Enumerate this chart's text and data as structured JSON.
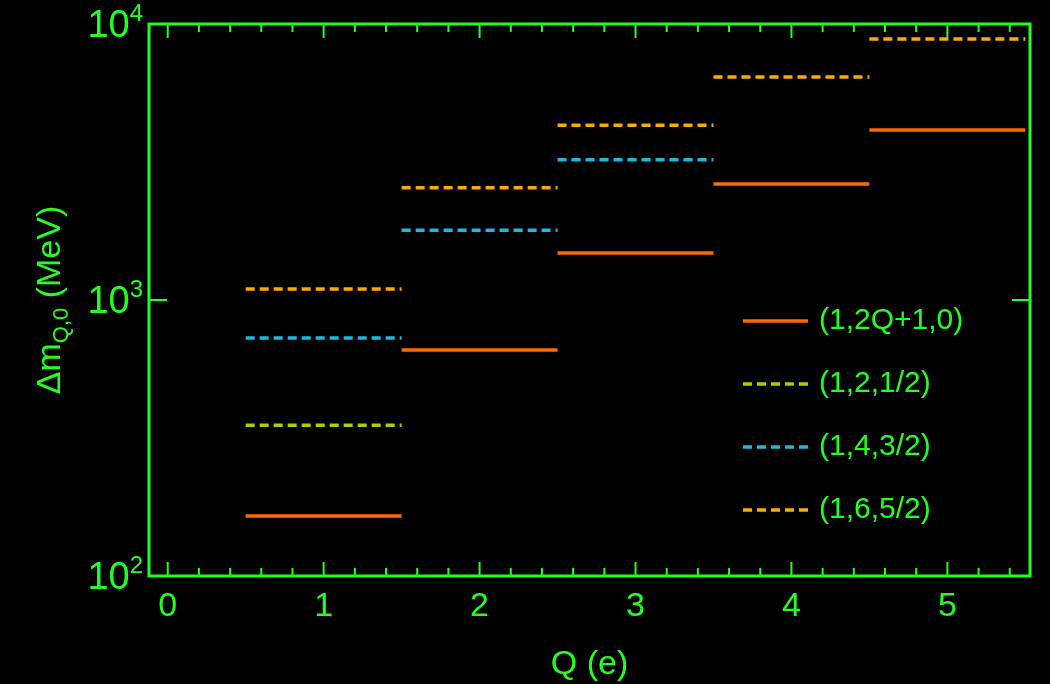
{
  "chart_data": {
    "type": "line",
    "xlabel": "Q (e)",
    "ylabel": "Δm$_{Q,0}$ (MeV)",
    "xlim": [
      -0.12,
      5.53
    ],
    "ylim": [
      100,
      10000
    ],
    "log": "y",
    "grid": false,
    "legend": "right",
    "marker": "none",
    "xticks": [
      0,
      {
        "value": 0.2,
        "label": null
      },
      {
        "value": 0.4,
        "label": null
      },
      {
        "value": 0.6,
        "label": null
      },
      {
        "value": 0.8,
        "label": null
      },
      1,
      {
        "value": 1.2,
        "label": null
      },
      {
        "value": 1.4,
        "label": null
      },
      {
        "value": 1.6,
        "label": null
      },
      {
        "value": 1.8,
        "label": null
      },
      2,
      {
        "value": 2.2,
        "label": null
      },
      {
        "value": 2.4,
        "label": null
      },
      {
        "value": 2.6,
        "label": null
      },
      {
        "value": 2.8,
        "label": null
      },
      3,
      {
        "value": 3.2,
        "label": null
      },
      {
        "value": 3.4,
        "label": null
      },
      {
        "value": 3.6,
        "label": null
      },
      {
        "value": 3.8,
        "label": null
      },
      4,
      {
        "value": 4.2,
        "label": null
      },
      {
        "value": 4.4,
        "label": null
      },
      {
        "value": 4.6,
        "label": null
      },
      {
        "value": 4.8,
        "label": null
      },
      5,
      {
        "value": 5.2,
        "label": null
      },
      {
        "value": 5.4,
        "label": null
      }
    ],
    "yticks": [
      {
        "value": 100,
        "label": "10$^{2}$"
      },
      {
        "value": 1000,
        "label": "10$^{3}$"
      },
      {
        "value": 10000,
        "label": "10$^{4}$"
      }
    ],
    "series": [
      {
        "name": "(1,2Q+1,0)",
        "color": "#ff6a00",
        "line_style": "solid",
        "x": [
          0.5,
          1.5
        ],
        "values": [
          165,
          165
        ]
      },
      {
        "name": "(1,2,1/2)",
        "color": "#b5cc00",
        "line_style": "dashed",
        "x": [
          0.5,
          1.5
        ],
        "values": [
          352,
          352
        ]
      },
      {
        "name": "(1,4,3/2)",
        "color": "#18bce0",
        "line_style": "dashed",
        "x": [
          0.5,
          1.5
        ],
        "values": [
          728,
          728
        ]
      },
      {
        "name": "(1,6,5/2)",
        "color": "#ffaa00",
        "line_style": "dashed",
        "x": [
          0.5,
          1.5
        ],
        "values": [
          1096,
          1096
        ]
      },
      {
        "color": "#ff6a00",
        "line_style": "solid",
        "x": [
          1.5,
          2.5
        ],
        "values": [
          659,
          659
        ]
      },
      {
        "color": "#ff6a00",
        "line_style": "solid",
        "x": [
          2.5,
          3.5
        ],
        "values": [
          1480,
          1480
        ]
      },
      {
        "color": "#ff6a00",
        "line_style": "solid",
        "x": [
          3.5,
          4.5
        ],
        "values": [
          2630,
          2630
        ]
      },
      {
        "color": "#ff6a00",
        "line_style": "solid",
        "x": [
          4.5,
          5.5
        ],
        "values": [
          4130,
          4130
        ]
      },
      {
        "color": "#18bce0",
        "line_style": "dashed",
        "x": [
          1.5,
          2.5
        ],
        "values": [
          1790,
          1790
        ]
      },
      {
        "color": "#18bce0",
        "line_style": "dashed",
        "x": [
          2.5,
          3.5
        ],
        "values": [
          3220,
          3220
        ]
      },
      {
        "color": "#ffaa00",
        "line_style": "dashed",
        "x": [
          1.5,
          2.5
        ],
        "values": [
          2550,
          2550
        ]
      },
      {
        "color": "#ffaa00",
        "line_style": "dashed",
        "x": [
          2.5,
          3.5
        ],
        "values": [
          4300,
          4300
        ]
      },
      {
        "color": "#ffaa00",
        "line_style": "dashed",
        "x": [
          3.5,
          4.5
        ],
        "values": [
          6430,
          6430
        ]
      },
      {
        "color": "#ffaa00",
        "line_style": "dashed",
        "x": [
          4.5,
          5.5
        ],
        "values": [
          8830,
          8830
        ]
      }
    ]
  }
}
